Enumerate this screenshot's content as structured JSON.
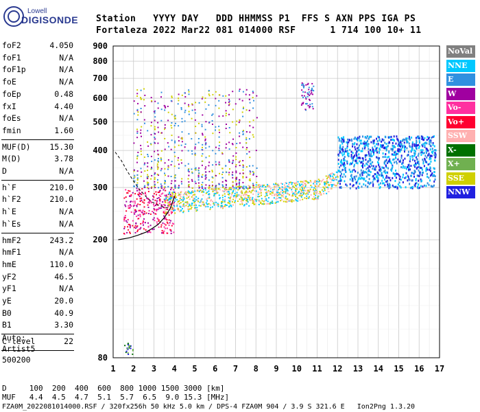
{
  "logo": {
    "line1": "Lowell",
    "line2": "DIGISONDE"
  },
  "header": {
    "row1": "Station   YYYY DAY   DDD HHMMSS P1  FFS S AXN PPS IGA PS",
    "row2": "Fortaleza 2022 Mar22 081 014000 RSF      1 714 100 10+ 11"
  },
  "params": [
    {
      "name": "foF2",
      "value": "4.050"
    },
    {
      "name": "foF1",
      "value": "N/A"
    },
    {
      "name": "foF1p",
      "value": "N/A"
    },
    {
      "name": "foE",
      "value": "N/A"
    },
    {
      "name": "foEp",
      "value": "0.48"
    },
    {
      "name": "fxI",
      "value": "4.40"
    },
    {
      "name": "foEs",
      "value": "N/A"
    },
    {
      "name": "fmin",
      "value": "1.60"
    },
    {
      "name": "MUF(D)",
      "value": "15.30"
    },
    {
      "name": "M(D)",
      "value": "3.78"
    },
    {
      "name": "D",
      "value": "N/A"
    },
    {
      "name": "h`F",
      "value": "210.0"
    },
    {
      "name": "h`F2",
      "value": "210.0"
    },
    {
      "name": "h`E",
      "value": "N/A"
    },
    {
      "name": "h`Es",
      "value": "N/A"
    },
    {
      "name": "hmF2",
      "value": "243.2"
    },
    {
      "name": "hmF1",
      "value": "N/A"
    },
    {
      "name": "hmE",
      "value": "110.0"
    },
    {
      "name": "yF2",
      "value": "46.5"
    },
    {
      "name": "yF1",
      "value": "N/A"
    },
    {
      "name": "yE",
      "value": "20.0"
    },
    {
      "name": "B0",
      "value": "40.9"
    },
    {
      "name": "B1",
      "value": "3.30"
    },
    {
      "name": "C-level",
      "value": "22"
    }
  ],
  "autoscale": {
    "line1": "Auto:",
    "line2": "Artist5",
    "line3": "500200"
  },
  "legend": [
    {
      "label": "NoVal",
      "color": "#808080"
    },
    {
      "label": "NNE",
      "color": "#00c8ff"
    },
    {
      "label": "E",
      "color": "#3090e0"
    },
    {
      "label": "W",
      "color": "#a000a0"
    },
    {
      "label": "Vo-",
      "color": "#ff30a0"
    },
    {
      "label": "Vo+",
      "color": "#ff0030"
    },
    {
      "label": "SSW",
      "color": "#ffb0b0"
    },
    {
      "label": "X-",
      "color": "#007000"
    },
    {
      "label": "X+",
      "color": "#70b050"
    },
    {
      "label": "SSE",
      "color": "#d0d000"
    },
    {
      "label": "NNW",
      "color": "#2020e0"
    }
  ],
  "muf_table": {
    "d_row": "D     100  200  400  600  800 1000 1500 3000 [km]",
    "muf_row": "MUF   4.4  4.5  4.7  5.1  5.7  6.5  9.0 15.3 [MHz]"
  },
  "footer": "FZA0M_2022081014000.RSF / 320fx256h 50 kHz 5.0 km / DPS-4 FZA0M 904 / 3.9 S 321.6 E   Ion2Png 1.3.20",
  "chart_data": {
    "type": "scatter",
    "title": "",
    "xlabel": "",
    "ylabel": "",
    "xlim": [
      1,
      17
    ],
    "ylim": [
      80,
      900
    ],
    "y_scale": "log",
    "x_ticks": [
      1,
      2,
      3,
      4,
      5,
      6,
      7,
      8,
      9,
      10,
      11,
      12,
      13,
      14,
      15,
      16,
      17
    ],
    "y_ticks": [
      80,
      200,
      300,
      400,
      500,
      600,
      700,
      800,
      900
    ],
    "grid": true,
    "trace_curve": {
      "name": "",
      "x": [
        1.25,
        1.8,
        2.2,
        2.6,
        2.9,
        3.2,
        3.5,
        3.8,
        4.0
      ],
      "y": [
        200,
        203,
        207,
        212,
        218,
        225,
        237,
        255,
        280
      ]
    },
    "dashed_curve": {
      "x": [
        1.1,
        1.4,
        1.7,
        2.0,
        2.3,
        2.6,
        2.9,
        3.3,
        3.8
      ],
      "y": [
        395,
        370,
        340,
        315,
        295,
        280,
        268,
        260,
        255
      ]
    },
    "echo_clusters": [
      {
        "region": "F trace low",
        "x_range": [
          1.5,
          4.0
        ],
        "h_range": [
          210,
          300
        ],
        "colors": [
          "#ff0030",
          "#ff30a0",
          "#a000a0"
        ]
      },
      {
        "region": "F trace main",
        "x_range": [
          3.5,
          12.0
        ],
        "h_range": [
          240,
          300
        ],
        "colors": [
          "#d0d000",
          "#ffb0b0",
          "#00c8ff"
        ]
      },
      {
        "region": "spread F scatter",
        "x_range": [
          2.0,
          8.0
        ],
        "h_range": [
          300,
          650
        ],
        "colors": [
          "#a000a0",
          "#d0d000",
          "#3090e0"
        ]
      },
      {
        "region": "high freq band",
        "x_range": [
          12.0,
          16.8
        ],
        "h_range": [
          300,
          450
        ],
        "colors": [
          "#2020e0",
          "#00c8ff",
          "#3090e0"
        ]
      },
      {
        "region": "high reflections 10.5 MHz",
        "x_range": [
          10.2,
          10.8
        ],
        "h_range": [
          550,
          680
        ],
        "colors": [
          "#a000a0",
          "#3090e0"
        ]
      },
      {
        "region": "Es low",
        "x_range": [
          1.5,
          2.0
        ],
        "h_range": [
          82,
          90
        ],
        "colors": [
          "#70b050",
          "#007000",
          "#2020e0"
        ]
      }
    ]
  }
}
